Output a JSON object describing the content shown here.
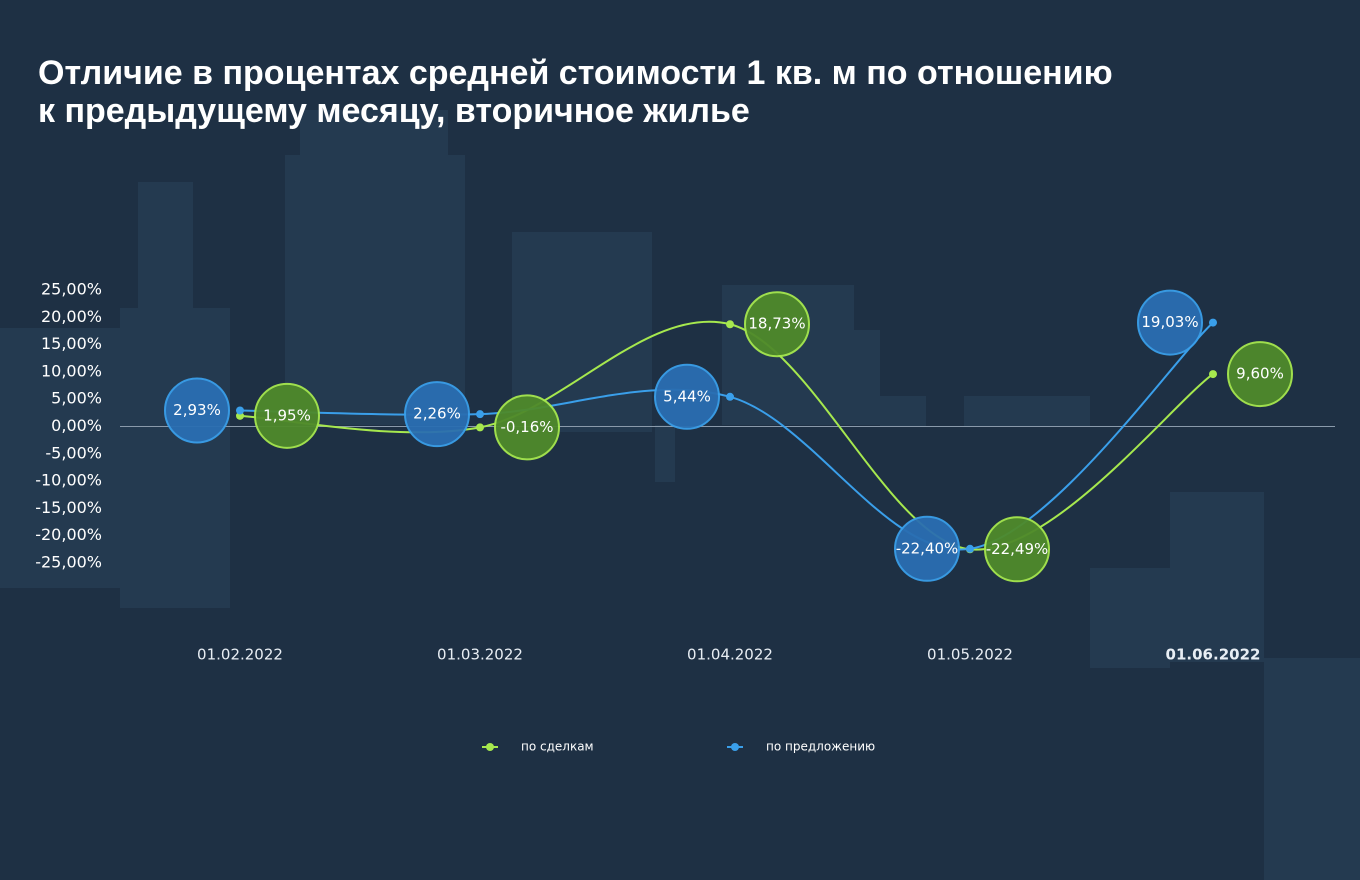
{
  "chart_data": {
    "type": "line",
    "title": [
      "Отличие в процентах средней стоимости 1 кв. м по отношению",
      "к предыдущему месяцу, вторичное жилье"
    ],
    "categories": [
      "01.02.2022",
      "01.03.2022",
      "01.04.2022",
      "01.05.2022",
      "01.06.2022"
    ],
    "series": [
      {
        "name": "по сделкам",
        "color": "#a6e84e",
        "values": [
          1.95,
          -0.16,
          18.73,
          -22.49,
          9.6
        ],
        "value_labels": [
          "1,95%",
          "-0,16%",
          "18,73%",
          "-22,49%",
          "9,60%"
        ]
      },
      {
        "name": "по предложению",
        "color": "#3a9fea",
        "values": [
          2.93,
          2.26,
          5.44,
          -22.4,
          19.03
        ],
        "value_labels": [
          "2,93%",
          "2,26%",
          "5,44%",
          "-22,40%",
          "19,03%"
        ]
      }
    ],
    "ylim": [
      -25,
      25
    ],
    "yticks": [
      {
        "value": 25,
        "label": "25,00%"
      },
      {
        "value": 20,
        "label": "20,00%"
      },
      {
        "value": 15,
        "label": "15,00%"
      },
      {
        "value": 10,
        "label": "10,00%"
      },
      {
        "value": 5,
        "label": "5,00%"
      },
      {
        "value": 0,
        "label": "0,00%"
      },
      {
        "value": -5,
        "label": "-5,00%"
      },
      {
        "value": -10,
        "label": "-10,00%"
      },
      {
        "value": -15,
        "label": "-15,00%"
      },
      {
        "value": -20,
        "label": "-20,00%"
      },
      {
        "value": -25,
        "label": "-25,00%"
      }
    ]
  }
}
